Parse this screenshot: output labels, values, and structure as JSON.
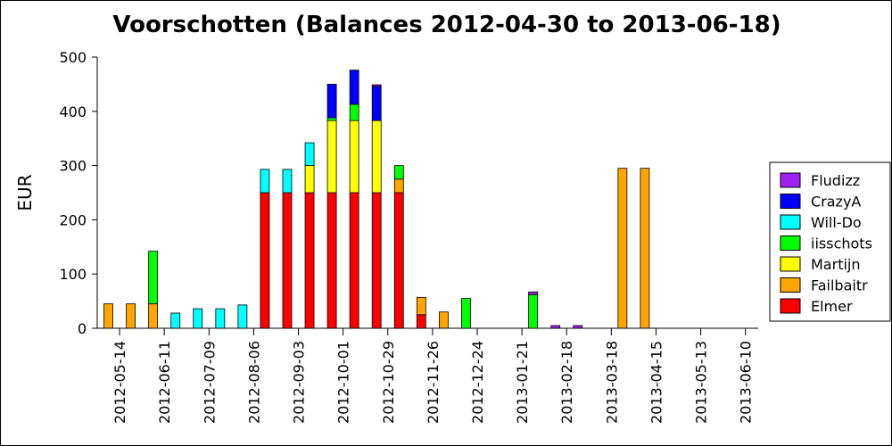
{
  "chart_data": {
    "type": "bar",
    "stacked": true,
    "title": "Voorschotten (Balances 2012-04-30 to 2013-06-18)",
    "xlabel": "",
    "ylabel": "EUR",
    "ylim": [
      0,
      500
    ],
    "yticks": [
      0,
      100,
      200,
      300,
      400,
      500
    ],
    "xlim": [
      "2012-04-30",
      "2013-06-18"
    ],
    "xticks": [
      "2012-05-14",
      "2012-06-11",
      "2012-07-09",
      "2012-08-06",
      "2012-09-03",
      "2012-10-01",
      "2012-10-29",
      "2012-11-26",
      "2012-12-24",
      "2013-01-21",
      "2013-02-18",
      "2013-03-18",
      "2013-04-15",
      "2013-05-13",
      "2013-06-10"
    ],
    "legend_position": "right",
    "grid": false,
    "x": [
      "2012-05-07",
      "2012-05-21",
      "2012-06-04",
      "2012-06-18",
      "2012-07-02",
      "2012-07-16",
      "2012-07-30",
      "2012-08-13",
      "2012-08-27",
      "2012-09-10",
      "2012-09-24",
      "2012-10-08",
      "2012-10-22",
      "2012-11-05",
      "2012-11-19",
      "2012-12-03",
      "2012-12-17",
      "2012-12-31",
      "2013-01-14",
      "2013-01-28",
      "2013-02-11",
      "2013-02-25",
      "2013-03-11",
      "2013-03-25",
      "2013-04-08",
      "2013-04-22",
      "2013-05-06",
      "2013-05-20",
      "2013-06-03",
      "2013-06-17"
    ],
    "series": [
      {
        "name": "Elmer",
        "color": "#ff0000",
        "values": [
          0,
          0,
          0,
          0,
          0,
          0,
          0,
          250,
          250,
          250,
          250,
          250,
          250,
          250,
          25,
          0,
          0,
          0,
          0,
          0,
          0,
          0,
          0,
          0,
          0,
          0,
          0,
          0,
          0,
          0
        ]
      },
      {
        "name": "Failbaitr",
        "color": "#ffa500",
        "values": [
          45,
          45,
          45,
          0,
          0,
          0,
          0,
          0,
          0,
          0,
          0,
          0,
          0,
          25,
          32,
          30,
          0,
          0,
          0,
          0,
          0,
          0,
          0,
          295,
          295,
          0,
          0,
          0,
          0,
          0
        ]
      },
      {
        "name": "Martijn",
        "color": "#ffff00",
        "values": [
          0,
          0,
          0,
          0,
          0,
          0,
          0,
          0,
          0,
          50,
          133,
          133,
          133,
          0,
          0,
          0,
          0,
          0,
          0,
          0,
          0,
          0,
          0,
          0,
          0,
          0,
          0,
          0,
          0,
          0
        ]
      },
      {
        "name": "iisschots",
        "color": "#00ff00",
        "values": [
          0,
          0,
          97,
          0,
          0,
          0,
          0,
          0,
          0,
          0,
          5,
          30,
          0,
          25,
          0,
          0,
          55,
          0,
          0,
          62,
          0,
          0,
          0,
          0,
          0,
          0,
          0,
          0,
          0,
          0
        ]
      },
      {
        "name": "Will-Do",
        "color": "#00ffff",
        "values": [
          0,
          0,
          0,
          28,
          36,
          36,
          43,
          43,
          43,
          42,
          0,
          0,
          0,
          0,
          0,
          0,
          0,
          0,
          0,
          0,
          0,
          0,
          0,
          0,
          0,
          0,
          0,
          0,
          0,
          0
        ]
      },
      {
        "name": "CrazyA",
        "color": "#0000ff",
        "values": [
          0,
          0,
          0,
          0,
          0,
          0,
          0,
          0,
          0,
          0,
          62,
          63,
          63,
          0,
          0,
          0,
          0,
          0,
          0,
          0,
          0,
          0,
          0,
          0,
          0,
          0,
          0,
          0,
          0,
          0
        ]
      },
      {
        "name": "Fludizz",
        "color": "#a020f0",
        "values": [
          0,
          0,
          0,
          0,
          0,
          0,
          0,
          0,
          0,
          0,
          0,
          0,
          3,
          0,
          0,
          0,
          0,
          0,
          0,
          5,
          5,
          5,
          0,
          0,
          0,
          0,
          0,
          0,
          0,
          0
        ]
      }
    ]
  }
}
